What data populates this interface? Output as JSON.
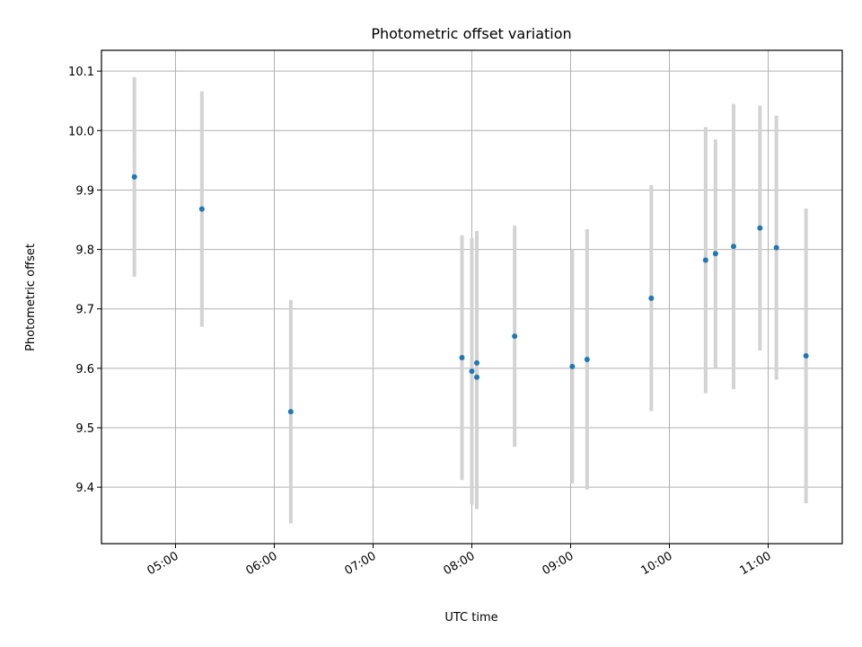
{
  "chart_data": {
    "type": "scatter",
    "title": "Photometric offset variation",
    "xlabel": "UTC time",
    "ylabel": "Photometric offset",
    "x_axis": "time",
    "xlim": [
      "04:15",
      "11:45"
    ],
    "ylim": [
      9.305,
      10.135
    ],
    "grid": true,
    "x_ticks": [
      "05:00",
      "06:00",
      "07:00",
      "08:00",
      "09:00",
      "10:00",
      "11:00"
    ],
    "y_ticks": [
      9.4,
      9.5,
      9.6,
      9.7,
      9.8,
      9.9,
      10.0,
      10.1
    ],
    "y_tick_labels": [
      "9.4",
      "9.5",
      "9.6",
      "9.7",
      "9.8",
      "9.9",
      "10.0",
      "10.1"
    ],
    "point_color": "#1f77b4",
    "errorbar_color": "#d3d3d3",
    "points": [
      {
        "time": "04:35",
        "y": 9.922,
        "err": 0.168
      },
      {
        "time": "05:16",
        "y": 9.868,
        "err": 0.198
      },
      {
        "time": "06:10",
        "y": 9.527,
        "err": 0.188
      },
      {
        "time": "07:54",
        "y": 9.618,
        "err": 0.206
      },
      {
        "time": "08:00",
        "y": 9.595,
        "err": 0.224
      },
      {
        "time": "08:03",
        "y": 9.585,
        "err": 0.222
      },
      {
        "time": "08:03",
        "y": 9.609,
        "err": 0.222
      },
      {
        "time": "08:26",
        "y": 9.654,
        "err": 0.186
      },
      {
        "time": "09:01",
        "y": 9.603,
        "err": 0.197
      },
      {
        "time": "09:10",
        "y": 9.615,
        "err": 0.219
      },
      {
        "time": "09:49",
        "y": 9.718,
        "err": 0.19
      },
      {
        "time": "10:22",
        "y": 9.782,
        "err": 0.224
      },
      {
        "time": "10:28",
        "y": 9.793,
        "err": 0.192
      },
      {
        "time": "10:39",
        "y": 9.805,
        "err": 0.24
      },
      {
        "time": "10:55",
        "y": 9.836,
        "err": 0.206
      },
      {
        "time": "11:05",
        "y": 9.803,
        "err": 0.222
      },
      {
        "time": "11:23",
        "y": 9.621,
        "err": 0.248
      }
    ]
  }
}
